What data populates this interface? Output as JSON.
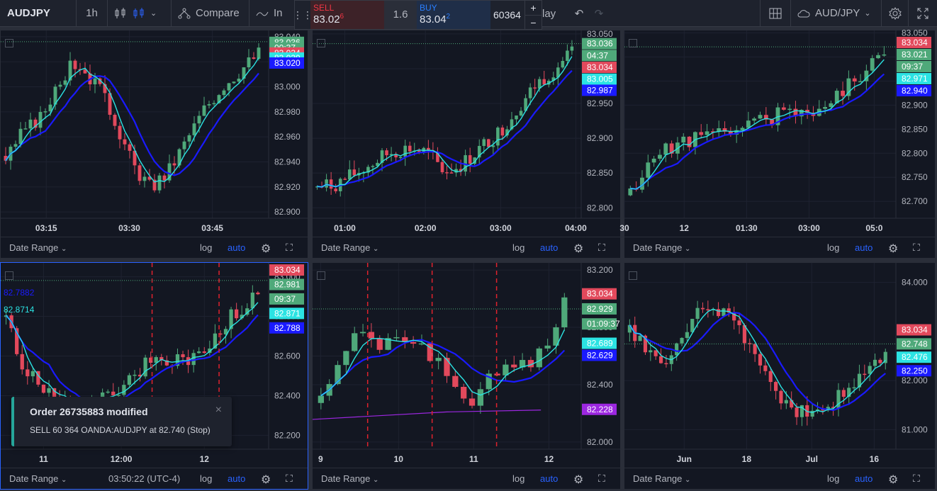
{
  "toolbar": {
    "symbol": "AUDJPY",
    "interval": "1h",
    "compare_label": "Compare",
    "indicators_label": "In",
    "replay_label": "lay",
    "symbol_right": "AUD/JPY"
  },
  "trade": {
    "sell_label": "SELL",
    "sell_price": "83.02",
    "sell_sup": "6",
    "spread": "1.6",
    "buy_label": "BUY",
    "buy_price": "83.04",
    "buy_sup": "2",
    "quantity": "60364",
    "plus": "+",
    "minus": "−"
  },
  "footer": {
    "date_range": "Date Range",
    "log": "log",
    "auto": "auto",
    "clock": "03:50:22 (UTC-4)"
  },
  "toast": {
    "title": "Order 26735883 modified",
    "body": "SELL 60 364 OANDA:AUDJPY at 82.740 (Stop)",
    "close": "×"
  },
  "colors": {
    "up": "#4fa97a",
    "down": "#e2495c",
    "ma_fast": "#2be3e3",
    "ma_slow": "#1a1aff",
    "accent": "#2962ff"
  },
  "panes": [
    {
      "ticks": [
        "83.040",
        "83.020",
        "83.000",
        "82.980",
        "82.960",
        "82.940",
        "82.920",
        "82.900"
      ],
      "ylim": [
        82.895,
        83.045
      ],
      "xticks": [
        "03:15",
        "03:30",
        "03:45"
      ],
      "labels": [
        {
          "text": "83.036",
          "v": 83.0355,
          "color": "#4fa97a"
        },
        {
          "text": "00:37",
          "v": 83.031,
          "color": "#4fa97a"
        },
        {
          "text": "83.034",
          "v": 83.027,
          "color": "#e2495c"
        },
        {
          "text": "83.030",
          "v": 83.023,
          "color": "#2be3e3"
        },
        {
          "text": "83.020",
          "v": 83.019,
          "color": "#1a1aff"
        }
      ],
      "price_line": 83.036,
      "seed": 3,
      "shape": [
        0.3,
        0.45,
        0.55,
        0.8,
        0.9,
        0.75,
        0.55,
        0.25,
        0.1,
        0.2,
        0.4,
        0.6,
        0.75,
        0.85,
        0.95
      ],
      "n": 52
    },
    {
      "ticks": [
        "83.050",
        "83.000",
        "82.950",
        "82.900",
        "82.850",
        "82.800"
      ],
      "ylim": [
        82.785,
        83.055
      ],
      "xticks": [
        "01:00",
        "02:00",
        "03:00",
        "04:00"
      ],
      "labels": [
        {
          "text": "83.036",
          "v": 83.036,
          "color": "#4fa97a"
        },
        {
          "text": "04:37",
          "v": 83.019,
          "color": "#4fa97a"
        },
        {
          "text": "83.034",
          "v": 83.002,
          "color": "#e2495c"
        },
        {
          "text": "83.005",
          "v": 82.985,
          "color": "#2be3e3"
        },
        {
          "text": "82.987",
          "v": 82.969,
          "color": "#1a1aff"
        }
      ],
      "price_line": 83.036,
      "seed": 7,
      "shape": [
        0.1,
        0.12,
        0.18,
        0.25,
        0.32,
        0.35,
        0.32,
        0.2,
        0.25,
        0.35,
        0.45,
        0.6,
        0.75,
        0.85,
        0.95
      ],
      "n": 56
    },
    {
      "ticks": [
        "83.050",
        "83.000",
        "82.950",
        "82.900",
        "82.850",
        "82.800",
        "82.750",
        "82.700"
      ],
      "ylim": [
        82.665,
        83.055
      ],
      "xticks": [
        "30",
        "12",
        "01:30",
        "03:00",
        "05:0"
      ],
      "labels": [
        {
          "text": "83.034",
          "v": 83.03,
          "color": "#e2495c"
        },
        {
          "text": "83.021",
          "v": 83.005,
          "color": "#4fa97a"
        },
        {
          "text": "09:37",
          "v": 82.98,
          "color": "#4fa97a"
        },
        {
          "text": "82.971",
          "v": 82.955,
          "color": "#2be3e3"
        },
        {
          "text": "82.940",
          "v": 82.93,
          "color": "#1a1aff"
        }
      ],
      "price_line": 83.021,
      "seed": 11,
      "shape": [
        0.05,
        0.25,
        0.35,
        0.4,
        0.42,
        0.45,
        0.48,
        0.52,
        0.55,
        0.6,
        0.55,
        0.65,
        0.75,
        0.85,
        0.98
      ],
      "n": 44
    },
    {
      "ticks": [
        "83.000",
        "82.800",
        "82.600",
        "82.400",
        "82.200"
      ],
      "ylim": [
        82.13,
        83.07
      ],
      "xticks": [
        "11",
        "12:00",
        "12"
      ],
      "labels": [
        {
          "text": "83.034",
          "v": 83.034,
          "color": "#e2495c"
        },
        {
          "text": "82.981",
          "v": 82.961,
          "color": "#4fa97a"
        },
        {
          "text": "09:37",
          "v": 82.888,
          "color": "#4fa97a"
        },
        {
          "text": "82.871",
          "v": 82.815,
          "color": "#2be3e3"
        },
        {
          "text": "82.788",
          "v": 82.742,
          "color": "#1a1aff"
        }
      ],
      "overlay": [
        {
          "text": "82.7882",
          "color": "#1a1aff"
        },
        {
          "text": "82.8714",
          "color": "#2be3e3"
        }
      ],
      "price_line": 82.981,
      "seed": 19,
      "shape": [
        0.75,
        0.4,
        0.3,
        0.22,
        0.18,
        0.2,
        0.25,
        0.35,
        0.5,
        0.48,
        0.45,
        0.55,
        0.7,
        0.8,
        0.92
      ],
      "n": 48,
      "vlines": [
        0.565,
        0.815
      ]
    },
    {
      "ticks": [
        "83.200",
        "82.800",
        "82.600",
        "82.400",
        "82.000"
      ],
      "ylim": [
        81.95,
        83.25
      ],
      "xticks": [
        "9",
        "10",
        "11",
        "12"
      ],
      "labels": [
        {
          "text": "83.034",
          "v": 83.034,
          "color": "#e2495c"
        },
        {
          "text": "82.929",
          "v": 82.929,
          "color": "#4fa97a"
        },
        {
          "text": "01:09:37",
          "v": 82.824,
          "color": "#4fa97a"
        },
        {
          "text": "82.689",
          "v": 82.689,
          "color": "#2be3e3"
        },
        {
          "text": "82.629",
          "v": 82.605,
          "color": "#1a1aff"
        },
        {
          "text": "82.228",
          "v": 82.228,
          "color": "#9c27e0"
        }
      ],
      "price_line": 82.929,
      "seed": 23,
      "shape": [
        0.2,
        0.45,
        0.65,
        0.55,
        0.6,
        0.62,
        0.5,
        0.3,
        0.2,
        0.35,
        0.4,
        0.45,
        0.55,
        0.85
      ],
      "n": 30,
      "vlines": [
        0.205,
        0.445,
        0.685
      ]
    },
    {
      "ticks": [
        "84.000",
        "82.000",
        "81.000"
      ],
      "ylim": [
        80.6,
        84.4
      ],
      "xticks": [
        "Jun",
        "18",
        "Jul",
        "16"
      ],
      "labels": [
        {
          "text": "83.034",
          "v": 83.034,
          "color": "#e2495c"
        },
        {
          "text": "82.748",
          "v": 82.748,
          "color": "#4fa97a"
        },
        {
          "text": "82.476",
          "v": 82.476,
          "color": "#2be3e3"
        },
        {
          "text": "82.250",
          "v": 82.2,
          "color": "#1a1aff"
        }
      ],
      "price_line": 82.748,
      "seed": 29,
      "shape": [
        0.65,
        0.55,
        0.45,
        0.65,
        0.85,
        0.8,
        0.7,
        0.45,
        0.25,
        0.15,
        0.12,
        0.2,
        0.3,
        0.45,
        0.5
      ],
      "n": 50
    }
  ]
}
